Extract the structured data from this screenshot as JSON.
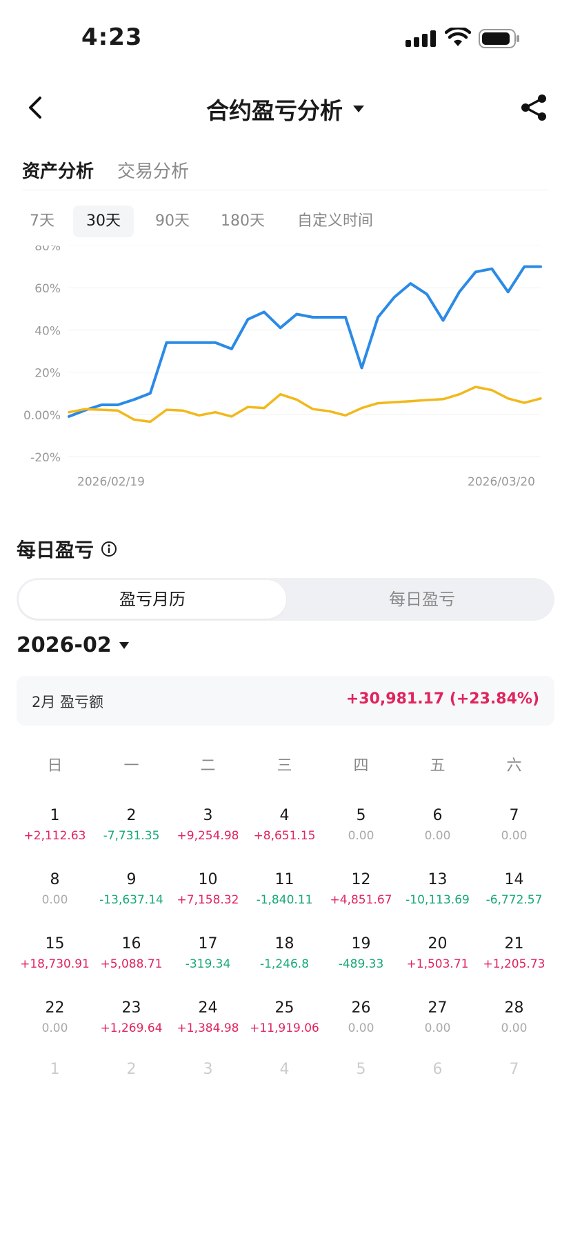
{
  "status": {
    "time": "4:23"
  },
  "nav": {
    "title": "合约盈亏分析"
  },
  "main_tabs": [
    {
      "label": "资产分析",
      "active": true
    },
    {
      "label": "交易分析",
      "active": false
    }
  ],
  "range_tabs": [
    {
      "label": "7天",
      "active": false
    },
    {
      "label": "30天",
      "active": true
    },
    {
      "label": "90天",
      "active": false
    },
    {
      "label": "180天",
      "active": false
    },
    {
      "label": "自定义时间",
      "active": false
    }
  ],
  "chart_data": {
    "type": "line",
    "x_start_label": "2026/02/19",
    "x_end_label": "2026/03/20",
    "y_tick_labels": [
      "80%",
      "60%",
      "40%",
      "20%",
      "0.00%",
      "-20%"
    ],
    "y_ticks": [
      80,
      60,
      40,
      20,
      0,
      -20
    ],
    "ylim": [
      -20,
      80
    ],
    "grid": true,
    "series": [
      {
        "color": "#2b8ae6",
        "values": [
          -1,
          2,
          4.5,
          4.5,
          7,
          10,
          34,
          34,
          34,
          34,
          31,
          45,
          48.5,
          41,
          47.5,
          46,
          46,
          46,
          22,
          46,
          55.5,
          62,
          57,
          44.5,
          58,
          67.5,
          69,
          58,
          70,
          70
        ]
      },
      {
        "color": "#f2b81b",
        "values": [
          1,
          2.5,
          2.2,
          1.8,
          -2.5,
          -3.5,
          2.2,
          1.8,
          -0.5,
          1,
          -1,
          3.5,
          3,
          9.5,
          7,
          2.5,
          1.5,
          -0.5,
          3,
          5.3,
          5.8,
          6.2,
          6.8,
          7.2,
          9.5,
          13,
          11.5,
          7.5,
          5.5,
          7.5
        ]
      }
    ]
  },
  "daily": {
    "title": "每日盈亏",
    "toggle": {
      "calendar": "盈亏月历",
      "daily": "每日盈亏"
    },
    "month": "2026-02",
    "summary_label": "2月 盈亏额",
    "summary_value": "+30,981.17 (+23.84%)",
    "weekdays": [
      "日",
      "一",
      "二",
      "三",
      "四",
      "五",
      "六"
    ],
    "days": [
      {
        "day": "1",
        "value": "+2,112.63",
        "sign": "pos"
      },
      {
        "day": "2",
        "value": "-7,731.35",
        "sign": "neg"
      },
      {
        "day": "3",
        "value": "+9,254.98",
        "sign": "pos"
      },
      {
        "day": "4",
        "value": "+8,651.15",
        "sign": "pos"
      },
      {
        "day": "5",
        "value": "0.00",
        "sign": "zero"
      },
      {
        "day": "6",
        "value": "0.00",
        "sign": "zero"
      },
      {
        "day": "7",
        "value": "0.00",
        "sign": "zero"
      },
      {
        "day": "8",
        "value": "0.00",
        "sign": "zero"
      },
      {
        "day": "9",
        "value": "-13,637.14",
        "sign": "neg"
      },
      {
        "day": "10",
        "value": "+7,158.32",
        "sign": "pos"
      },
      {
        "day": "11",
        "value": "-1,840.11",
        "sign": "neg"
      },
      {
        "day": "12",
        "value": "+4,851.67",
        "sign": "pos"
      },
      {
        "day": "13",
        "value": "-10,113.69",
        "sign": "neg"
      },
      {
        "day": "14",
        "value": "-6,772.57",
        "sign": "neg"
      },
      {
        "day": "15",
        "value": "+18,730.91",
        "sign": "pos"
      },
      {
        "day": "16",
        "value": "+5,088.71",
        "sign": "pos"
      },
      {
        "day": "17",
        "value": "-319.34",
        "sign": "neg"
      },
      {
        "day": "18",
        "value": "-1,246.8",
        "sign": "neg"
      },
      {
        "day": "19",
        "value": "-489.33",
        "sign": "neg"
      },
      {
        "day": "20",
        "value": "+1,503.71",
        "sign": "pos"
      },
      {
        "day": "21",
        "value": "+1,205.73",
        "sign": "pos"
      },
      {
        "day": "22",
        "value": "0.00",
        "sign": "zero"
      },
      {
        "day": "23",
        "value": "+1,269.64",
        "sign": "pos"
      },
      {
        "day": "24",
        "value": "+1,384.98",
        "sign": "pos"
      },
      {
        "day": "25",
        "value": "+11,919.06",
        "sign": "pos"
      },
      {
        "day": "26",
        "value": "0.00",
        "sign": "zero"
      },
      {
        "day": "27",
        "value": "0.00",
        "sign": "zero"
      },
      {
        "day": "28",
        "value": "0.00",
        "sign": "zero"
      }
    ],
    "next_month_days": [
      "1",
      "2",
      "3",
      "4",
      "5",
      "6",
      "7"
    ]
  },
  "colors": {
    "positive": "#e0245e",
    "negative": "#16a878",
    "line_primary": "#2b8ae6",
    "line_secondary": "#f2b81b"
  },
  "icons": {
    "back": "chevron-left-icon",
    "title_dropdown": "caret-down-icon",
    "share": "share-icon",
    "info": "info-icon",
    "month_dropdown": "caret-down-icon"
  }
}
